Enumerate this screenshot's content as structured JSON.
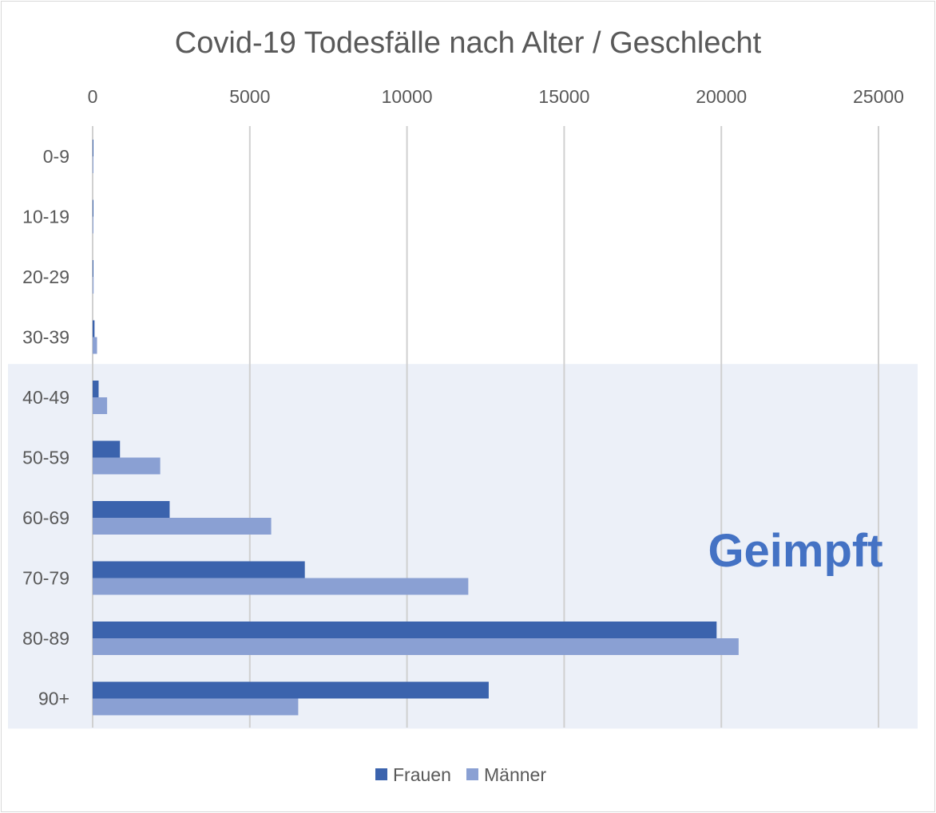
{
  "chart_data": {
    "type": "bar",
    "orientation": "horizontal",
    "title": "Covid-19 Todesfälle nach Alter / Geschlecht",
    "xlabel": "",
    "ylabel": "",
    "xlim": [
      0,
      25000
    ],
    "x_ticks": [
      "0",
      "5000",
      "10000",
      "15000",
      "20000",
      "25000"
    ],
    "x_axis_position": "top",
    "grid": true,
    "categories": [
      "0-9",
      "10-19",
      "20-29",
      "30-39",
      "40-49",
      "50-59",
      "60-69",
      "70-79",
      "80-89",
      "90+"
    ],
    "series": [
      {
        "name": "Frauen",
        "color": "#3b63ad",
        "values": [
          2,
          5,
          15,
          60,
          190,
          870,
          2450,
          6750,
          19850,
          12600
        ]
      },
      {
        "name": "Männer",
        "color": "#8aa0d3",
        "values": [
          3,
          10,
          30,
          140,
          460,
          2150,
          5680,
          11950,
          20550,
          6540
        ]
      }
    ],
    "legend_position": "bottom",
    "highlight": {
      "label": "Geimpft",
      "label_color": "#4472c4",
      "band_color": "#ecf0f8",
      "from_category": "40-49",
      "to_category": "90+"
    }
  }
}
